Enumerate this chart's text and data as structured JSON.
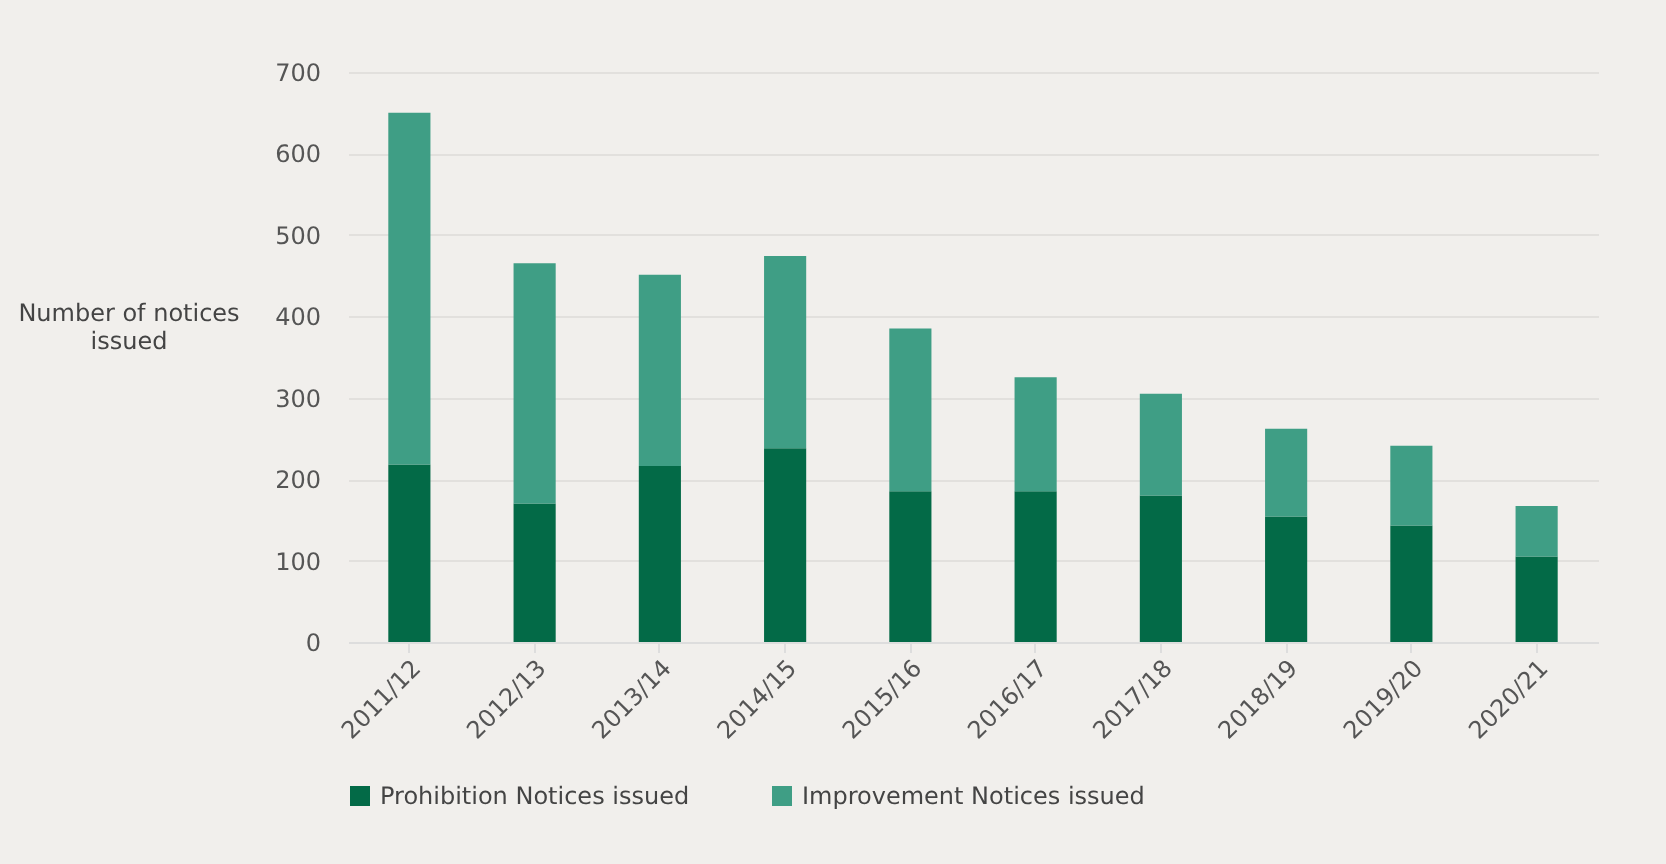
{
  "chart_data": {
    "type": "bar",
    "ylabel": "Number of notices issued",
    "stacked": true,
    "categories": [
      "2011/12",
      "2012/13",
      "2013/14",
      "2014/15",
      "2015/16",
      "2016/17",
      "2017/18",
      "2018/19",
      "2019/20",
      "2020/21"
    ],
    "series": [
      {
        "name": "Prohibition Notices issued",
        "color": "#036a47",
        "values": [
          218,
          170,
          216,
          238,
          185,
          185,
          180,
          154,
          143,
          105
        ]
      },
      {
        "name": "Improvement Notices issued",
        "color": "#3f9e85",
        "values": [
          432,
          295,
          235,
          236,
          200,
          140,
          125,
          108,
          98,
          62
        ]
      }
    ],
    "ylim": [
      0,
      700
    ],
    "yticks": [
      0,
      100,
      200,
      300,
      400,
      500,
      600,
      700
    ],
    "grid": "y",
    "legend": "bottom"
  }
}
